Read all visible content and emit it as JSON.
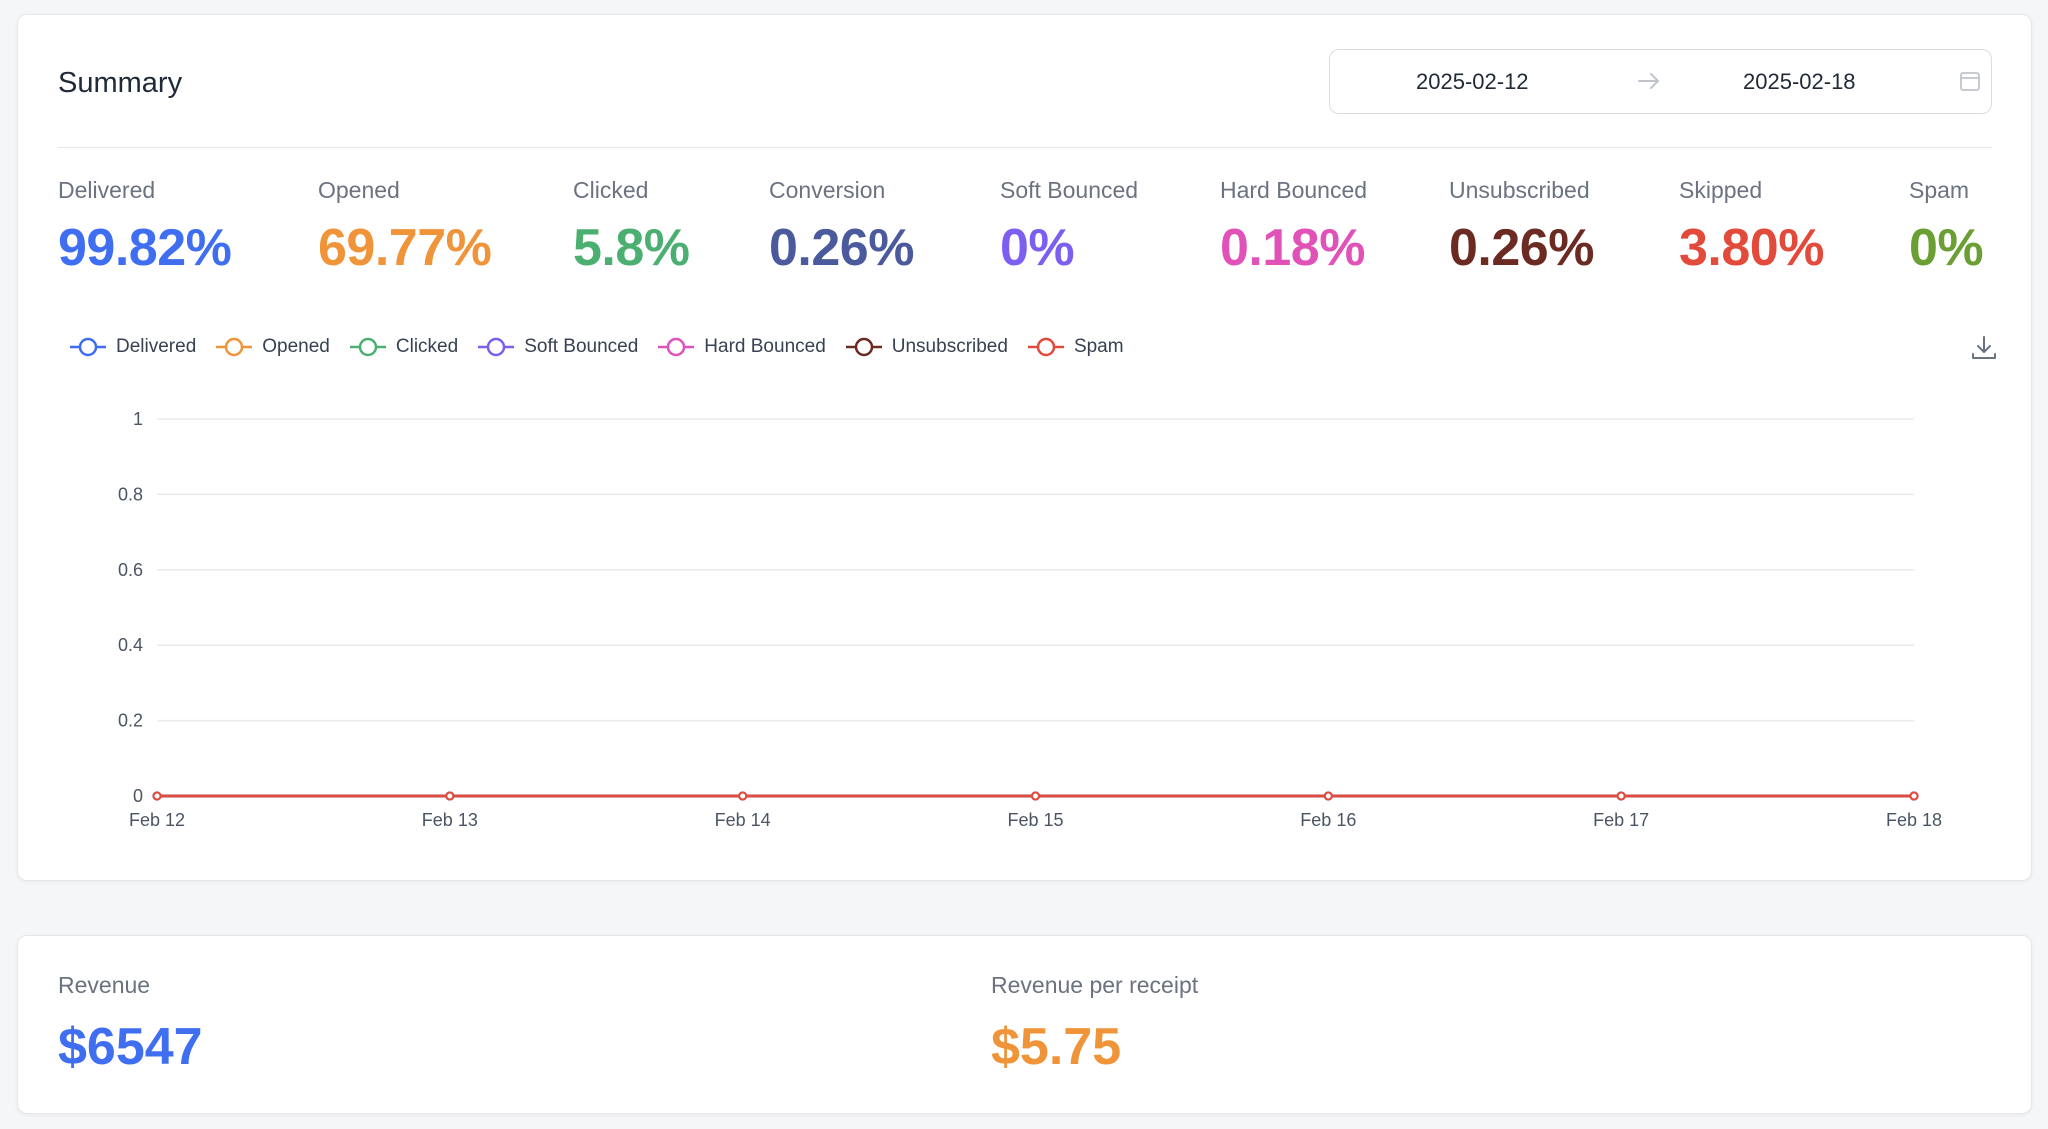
{
  "summary": {
    "title": "Summary",
    "date_range": {
      "start": "2025-02-12",
      "end": "2025-02-18"
    },
    "stats": [
      {
        "label": "Delivered",
        "value": "99.82%",
        "color": "#3f6ef0"
      },
      {
        "label": "Opened",
        "value": "69.77%",
        "color": "#f0943a"
      },
      {
        "label": "Clicked",
        "value": "5.8%",
        "color": "#4caf72"
      },
      {
        "label": "Conversion",
        "value": "0.26%",
        "color": "#4b5a9c"
      },
      {
        "label": "Soft Bounced",
        "value": "0%",
        "color": "#7c5ff0"
      },
      {
        "label": "Hard Bounced",
        "value": "0.18%",
        "color": "#e052b8"
      },
      {
        "label": "Unsubscribed",
        "value": "0.26%",
        "color": "#6b2a22"
      },
      {
        "label": "Skipped",
        "value": "3.80%",
        "color": "#e24a3b"
      },
      {
        "label": "Spam",
        "value": "0%",
        "color": "#6b9e33"
      }
    ],
    "icons": {
      "arrow": "arrow-right-icon",
      "calendar": "calendar-icon",
      "download": "download-icon"
    }
  },
  "chart_data": {
    "type": "line",
    "x": [
      "Feb 12",
      "Feb 13",
      "Feb 14",
      "Feb 15",
      "Feb 16",
      "Feb 17",
      "Feb 18"
    ],
    "ylim": [
      0,
      1
    ],
    "yticks": [
      "0",
      "0.2",
      "0.4",
      "0.6",
      "0.8",
      "1"
    ],
    "grid": true,
    "legend_position": "top-left",
    "series": [
      {
        "name": "Delivered",
        "color": "#3f6ef0",
        "values": [
          0,
          0,
          0,
          0,
          0,
          0,
          0
        ]
      },
      {
        "name": "Opened",
        "color": "#f0943a",
        "values": [
          0,
          0,
          0,
          0,
          0,
          0,
          0
        ]
      },
      {
        "name": "Clicked",
        "color": "#4caf72",
        "values": [
          0,
          0,
          0,
          0,
          0,
          0,
          0
        ]
      },
      {
        "name": "Soft Bounced",
        "color": "#7c5ff0",
        "values": [
          0,
          0,
          0,
          0,
          0,
          0,
          0
        ]
      },
      {
        "name": "Hard Bounced",
        "color": "#e052b8",
        "values": [
          0,
          0,
          0,
          0,
          0,
          0,
          0
        ]
      },
      {
        "name": "Unsubscribed",
        "color": "#6b2a22",
        "values": [
          0,
          0,
          0,
          0,
          0,
          0,
          0
        ]
      },
      {
        "name": "Spam",
        "color": "#e24a3b",
        "values": [
          0,
          0,
          0,
          0,
          0,
          0,
          0
        ]
      }
    ]
  },
  "revenue": {
    "items": [
      {
        "label": "Revenue",
        "value": "$6547",
        "color": "#3f6ef0"
      },
      {
        "label": "Revenue per receipt",
        "value": "$5.75",
        "color": "#f0943a"
      }
    ]
  }
}
